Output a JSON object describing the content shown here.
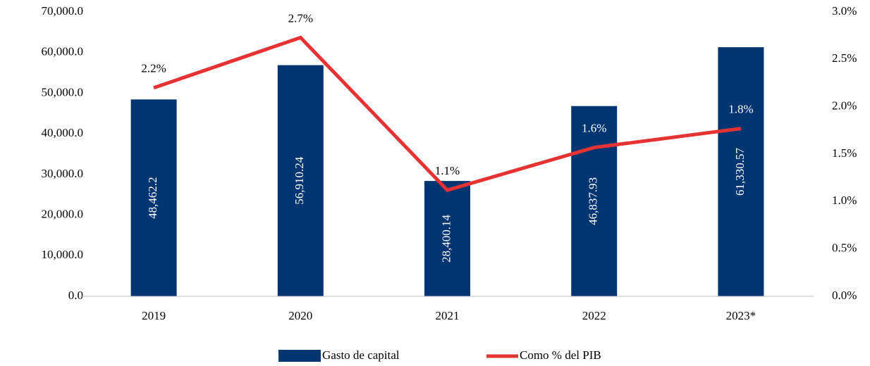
{
  "chart_data": {
    "type": "bar_line",
    "categories": [
      "2019",
      "2020",
      "2021",
      "2022",
      "2023*"
    ],
    "series": [
      {
        "name": "Gasto de capital",
        "color": "#003571",
        "type": "bar",
        "values": [
          48462.2,
          56910.24,
          28400.14,
          46837.93,
          61330.57
        ],
        "value_labels": [
          "48,462.2",
          "56,910.24",
          "28,400.14",
          "46,837.93",
          "61,330.57"
        ]
      },
      {
        "name": "Como % del PIB",
        "color": "#e53232",
        "type": "line",
        "axis": "y2",
        "values": [
          2.2,
          2.73,
          1.12,
          1.57,
          1.77
        ],
        "value_labels": [
          "2.2%",
          "2.7%",
          "1.1%",
          "1.6%",
          "1.8%"
        ]
      }
    ],
    "ylim": [
      0,
      70000
    ],
    "yticks": [
      {
        "value": 0,
        "label": "0.0"
      },
      {
        "value": 10000,
        "label": "10,000.0"
      },
      {
        "value": 20000,
        "label": "20,000.0"
      },
      {
        "value": 30000,
        "label": "30,000.0"
      },
      {
        "value": 40000,
        "label": "40,000.0"
      },
      {
        "value": 50000,
        "label": "50,000.0"
      },
      {
        "value": 60000,
        "label": "60,000.0"
      },
      {
        "value": 70000,
        "label": "70,000.0"
      }
    ],
    "y2lim": [
      0,
      3
    ],
    "y2ticks": [
      {
        "value": 0,
        "label": "0.0%"
      },
      {
        "value": 0.5,
        "label": "0.5%"
      },
      {
        "value": 1,
        "label": "1.0%"
      },
      {
        "value": 1.5,
        "label": "1.5%"
      },
      {
        "value": 2,
        "label": "2.0%"
      },
      {
        "value": 2.5,
        "label": "2.5%"
      },
      {
        "value": 3,
        "label": "3.0%"
      }
    ],
    "legend": "bottom"
  }
}
